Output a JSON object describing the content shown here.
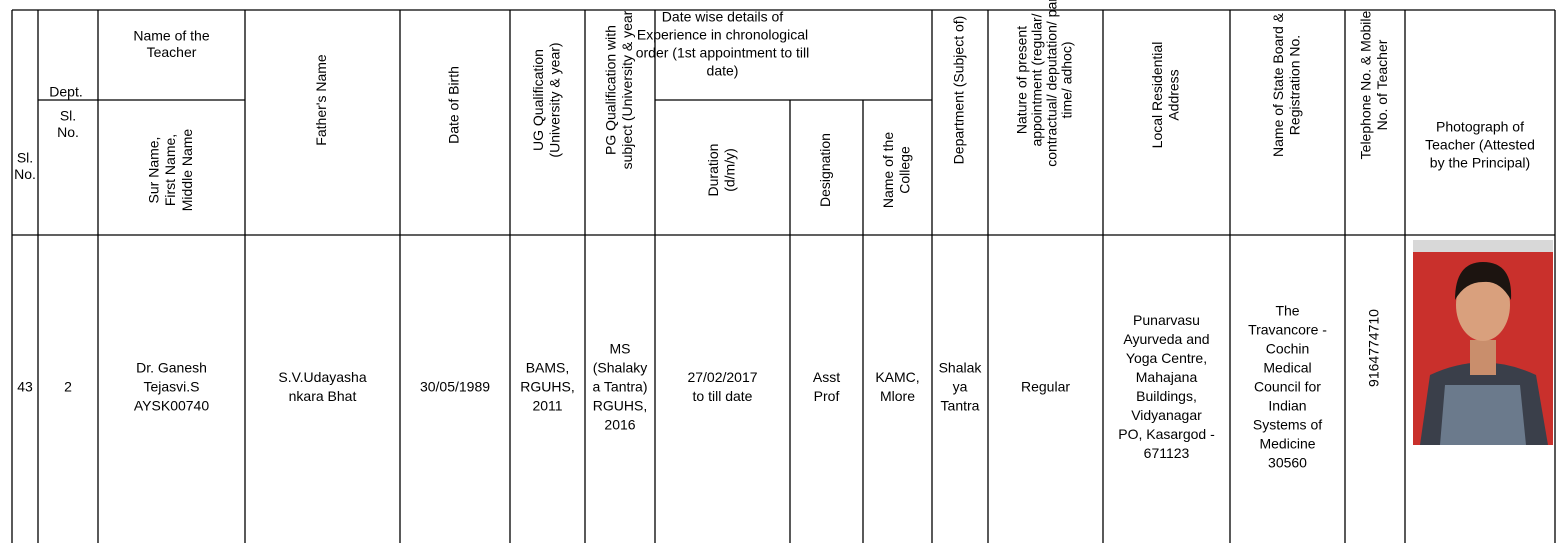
{
  "table": {
    "headers": {
      "sl_no": [
        "Sl.",
        "No."
      ],
      "dept": "Dept.",
      "dept_sl_no": [
        "Sl.",
        "No."
      ],
      "name": [
        "Name of the",
        "Teacher"
      ],
      "name_sub": [
        "Sur Name,",
        "First Name,",
        "Middle Name"
      ],
      "father": "Father's Name",
      "dob": "Date of Birth",
      "ug": [
        "UG Qualification",
        "(University & year)"
      ],
      "pg": [
        "PG Qualification with",
        "subject (University & year"
      ],
      "experience": [
        "Date wise details of",
        "Experience in chronological",
        "order (1st appointment to till",
        "date)"
      ],
      "duration": [
        "Duration",
        "(d/m/y)"
      ],
      "designation": "Designation",
      "college": [
        "Name of the",
        "College"
      ],
      "department": "Department (Subject of)",
      "nature": [
        "Nature of present",
        "appointment (regular/",
        "contractual/ deputation/ part",
        "time/ adhoc)"
      ],
      "address": [
        "Local Residential",
        "Address"
      ],
      "board": [
        "Name of State Board &",
        "Registration No."
      ],
      "telephone": [
        "Telephone No. & Mobile",
        "No. of Teacher"
      ],
      "photo": [
        "Photograph of",
        "Teacher (Attested",
        "by the Principal)"
      ]
    },
    "rows": [
      [
        "43",
        "2",
        [
          "Dr. Ganesh",
          "Tejasvi.S",
          "AYSK00740"
        ],
        [
          "S.V.Udayasha",
          "nkara Bhat"
        ],
        "30/05/1989",
        [
          "BAMS,",
          "RGUHS,",
          "2011"
        ],
        [
          "MS",
          "(Shalaky",
          "a Tantra)",
          "RGUHS,",
          "2016"
        ],
        [
          "27/02/2017",
          "to till date"
        ],
        [
          "Asst",
          "Prof"
        ],
        [
          "KAMC,",
          "Mlore"
        ],
        [
          "Shalak",
          "ya",
          "Tantra"
        ],
        "Regular",
        [
          "Punarvasu",
          "Ayurveda and",
          "Yoga Centre,",
          "Mahajana",
          "Buildings,",
          "Vidyanagar",
          "PO, Kasargod -",
          "671123"
        ],
        [
          "The",
          "Travancore -",
          "Cochin",
          "Medical",
          "Council for",
          "Indian",
          "Systems of",
          "Medicine",
          "30560"
        ],
        "9164774710"
      ]
    ]
  }
}
